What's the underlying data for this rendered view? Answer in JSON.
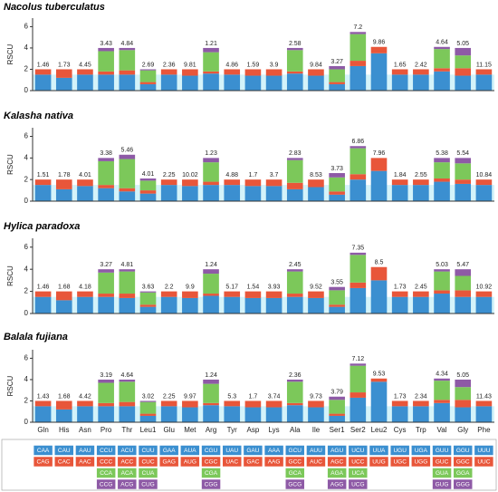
{
  "chart_data": [
    {
      "type": "bar",
      "stacked": true,
      "title": "Nacolus tuberculatus",
      "ylabel": "RSCU",
      "ylim": [
        0,
        6.8
      ],
      "yticks": [
        0,
        2,
        4,
        6
      ],
      "labels": [
        1.46,
        1.73,
        4.45,
        3.43,
        4.84,
        2.69,
        2.36,
        9.81,
        1.21,
        4.86,
        1.59,
        3.9,
        2.58,
        9.84,
        3.27,
        7.2,
        9.86,
        1.65,
        2.42,
        4.64,
        5.05,
        11.15
      ],
      "series": [
        {
          "color": "#3b8fd0",
          "values": [
            1.5,
            1.2,
            1.5,
            1.5,
            1.5,
            0.6,
            1.5,
            1.4,
            1.6,
            1.5,
            1.4,
            1.4,
            1.6,
            1.4,
            0.6,
            2.3,
            3.5,
            1.5,
            1.5,
            1.8,
            1.4,
            1.5
          ]
        },
        {
          "color": "#e8563a",
          "values": [
            0.5,
            0.8,
            0.5,
            0.3,
            0.4,
            0.2,
            0.5,
            0.6,
            0.2,
            0.5,
            0.6,
            0.6,
            0.2,
            0.6,
            0.2,
            0.5,
            0.6,
            0.5,
            0.5,
            0.3,
            0.7,
            0.5
          ]
        },
        {
          "color": "#7cc85a",
          "values": [
            null,
            null,
            null,
            1.9,
            1.9,
            1.1,
            null,
            null,
            1.8,
            null,
            null,
            null,
            2.0,
            null,
            1.2,
            2.5,
            null,
            null,
            null,
            1.8,
            1.2,
            null
          ]
        },
        {
          "color": "#8e5aa6",
          "values": [
            null,
            null,
            null,
            0.3,
            0.2,
            0.1,
            null,
            null,
            0.4,
            null,
            null,
            null,
            0.2,
            null,
            0.3,
            0.2,
            null,
            null,
            null,
            0.2,
            0.7,
            null
          ]
        }
      ]
    },
    {
      "type": "bar",
      "stacked": true,
      "title": "Kalasha nativa",
      "ylabel": "RSCU",
      "ylim": [
        0,
        6.8
      ],
      "yticks": [
        0,
        2,
        4,
        6
      ],
      "labels": [
        1.51,
        1.78,
        4.01,
        3.38,
        5.46,
        4.01,
        2.25,
        10.02,
        1.23,
        4.88,
        1.7,
        3.7,
        2.83,
        8.53,
        3.73,
        6.86,
        7.96,
        1.84,
        2.55,
        5.38,
        5.54,
        10.84
      ],
      "series": [
        {
          "color": "#3b8fd0",
          "values": [
            1.5,
            1.1,
            1.4,
            1.2,
            0.9,
            0.7,
            1.5,
            1.4,
            1.5,
            1.5,
            1.4,
            1.4,
            1.1,
            1.3,
            0.6,
            2.0,
            2.8,
            1.5,
            1.5,
            1.8,
            1.6,
            1.5
          ]
        },
        {
          "color": "#e8563a",
          "values": [
            0.5,
            0.9,
            0.6,
            0.3,
            0.3,
            0.3,
            0.5,
            0.6,
            0.3,
            0.5,
            0.6,
            0.6,
            0.6,
            0.7,
            0.3,
            0.5,
            1.2,
            0.5,
            0.5,
            0.3,
            0.4,
            0.5
          ]
        },
        {
          "color": "#7cc85a",
          "values": [
            null,
            null,
            null,
            2.2,
            2.7,
            0.9,
            null,
            null,
            1.8,
            null,
            null,
            null,
            2.1,
            null,
            1.3,
            2.4,
            null,
            null,
            null,
            1.5,
            1.5,
            null
          ]
        },
        {
          "color": "#8e5aa6",
          "values": [
            null,
            null,
            null,
            0.3,
            0.4,
            0.2,
            null,
            null,
            0.4,
            null,
            null,
            null,
            0.2,
            null,
            0.4,
            0.2,
            null,
            null,
            null,
            0.4,
            0.5,
            null
          ]
        }
      ]
    },
    {
      "type": "bar",
      "stacked": true,
      "title": "Hylica paradoxa",
      "ylabel": "RSCU",
      "ylim": [
        0,
        6.8
      ],
      "yticks": [
        0,
        2,
        4,
        6
      ],
      "labels": [
        1.46,
        1.68,
        4.18,
        3.27,
        4.81,
        3.63,
        2.2,
        9.9,
        1.24,
        5.17,
        1.54,
        3.93,
        2.45,
        9.52,
        3.55,
        7.35,
        8.5,
        1.73,
        2.45,
        5.03,
        5.47,
        10.92
      ],
      "series": [
        {
          "color": "#3b8fd0",
          "values": [
            1.5,
            1.2,
            1.5,
            1.5,
            1.4,
            0.6,
            1.5,
            1.4,
            1.6,
            1.5,
            1.4,
            1.4,
            1.5,
            1.4,
            0.6,
            2.3,
            3.0,
            1.5,
            1.5,
            1.8,
            1.5,
            1.5
          ]
        },
        {
          "color": "#e8563a",
          "values": [
            0.5,
            0.8,
            0.5,
            0.3,
            0.4,
            0.2,
            0.5,
            0.6,
            0.2,
            0.5,
            0.6,
            0.6,
            0.3,
            0.6,
            0.2,
            0.5,
            1.2,
            0.5,
            0.5,
            0.3,
            0.6,
            0.5
          ]
        },
        {
          "color": "#7cc85a",
          "values": [
            null,
            null,
            null,
            1.9,
            2.0,
            1.1,
            null,
            null,
            1.8,
            null,
            null,
            null,
            2.0,
            null,
            1.3,
            2.5,
            null,
            null,
            null,
            1.7,
            1.3,
            null
          ]
        },
        {
          "color": "#8e5aa6",
          "values": [
            null,
            null,
            null,
            0.3,
            0.2,
            0.1,
            null,
            null,
            0.4,
            null,
            null,
            null,
            0.2,
            null,
            0.3,
            0.2,
            null,
            null,
            null,
            0.2,
            0.6,
            null
          ]
        }
      ]
    },
    {
      "type": "bar",
      "stacked": true,
      "title": "Balala fujiana",
      "ylabel": "RSCU",
      "ylim": [
        0,
        6.8
      ],
      "yticks": [
        0,
        2,
        4,
        6
      ],
      "categories": [
        "Gln",
        "His",
        "Asn",
        "Pro",
        "Thr",
        "Leu1",
        "Glu",
        "Met",
        "Arg",
        "Tyr",
        "Asp",
        "Lys",
        "Ala",
        "Ile",
        "Ser1",
        "Ser2",
        "Leu2",
        "Cys",
        "Trp",
        "Val",
        "Gly",
        "Phe"
      ],
      "labels": [
        1.43,
        1.68,
        4.42,
        3.19,
        4.64,
        3.02,
        2.25,
        9.97,
        1.24,
        5.3,
        1.7,
        3.74,
        2.36,
        9.73,
        3.79,
        7.12,
        9.53,
        1.73,
        2.34,
        4.34,
        5.05,
        11.43
      ],
      "series": [
        {
          "color": "#3b8fd0",
          "values": [
            1.5,
            1.2,
            1.5,
            1.5,
            1.5,
            0.6,
            1.5,
            1.4,
            1.6,
            1.5,
            1.4,
            1.4,
            1.6,
            1.4,
            0.6,
            2.3,
            3.8,
            1.5,
            1.5,
            1.8,
            1.4,
            1.5
          ]
        },
        {
          "color": "#e8563a",
          "values": [
            0.5,
            0.8,
            0.5,
            0.3,
            0.4,
            0.2,
            0.5,
            0.6,
            0.2,
            0.5,
            0.6,
            0.6,
            0.2,
            0.6,
            0.2,
            0.5,
            0.3,
            0.5,
            0.5,
            0.3,
            0.7,
            0.5
          ]
        },
        {
          "color": "#7cc85a",
          "values": [
            null,
            null,
            null,
            1.9,
            1.9,
            1.1,
            null,
            null,
            1.8,
            null,
            null,
            null,
            2.0,
            null,
            1.3,
            2.5,
            null,
            null,
            null,
            1.8,
            1.2,
            null
          ]
        },
        {
          "color": "#8e5aa6",
          "values": [
            null,
            null,
            null,
            0.3,
            0.2,
            0.1,
            null,
            null,
            0.4,
            null,
            null,
            null,
            0.2,
            null,
            0.3,
            0.2,
            null,
            null,
            null,
            0.2,
            0.7,
            null
          ]
        }
      ]
    }
  ],
  "codon_table": [
    [
      "CAA",
      "CAG"
    ],
    [
      "CAU",
      "CAC"
    ],
    [
      "AAU",
      "AAC"
    ],
    [
      "CCU",
      "CCC",
      "CCA",
      "CCG"
    ],
    [
      "ACU",
      "ACC",
      "ACA",
      "ACG"
    ],
    [
      "CUU",
      "CUC",
      "CUA",
      "CUG"
    ],
    [
      "GAA",
      "GAG"
    ],
    [
      "AUA",
      "AUG"
    ],
    [
      "CGU",
      "CGC",
      "CGA",
      "CGG"
    ],
    [
      "UAU",
      "UAC"
    ],
    [
      "GAU",
      "GAC"
    ],
    [
      "AAA",
      "AAG"
    ],
    [
      "GCU",
      "GCC",
      "GCA",
      "GCG"
    ],
    [
      "AUU",
      "AUC"
    ],
    [
      "AGU",
      "AGC",
      "AGA",
      "AGG"
    ],
    [
      "UCU",
      "UCC",
      "UCA",
      "UCG"
    ],
    [
      "UUA",
      "UUG"
    ],
    [
      "UGU",
      "UGC"
    ],
    [
      "UGA",
      "UGG"
    ],
    [
      "GUU",
      "GUC",
      "GUA",
      "GUG"
    ],
    [
      "GGU",
      "GGC",
      "GGA",
      "GGG"
    ],
    [
      "UUU",
      "UUC"
    ]
  ]
}
